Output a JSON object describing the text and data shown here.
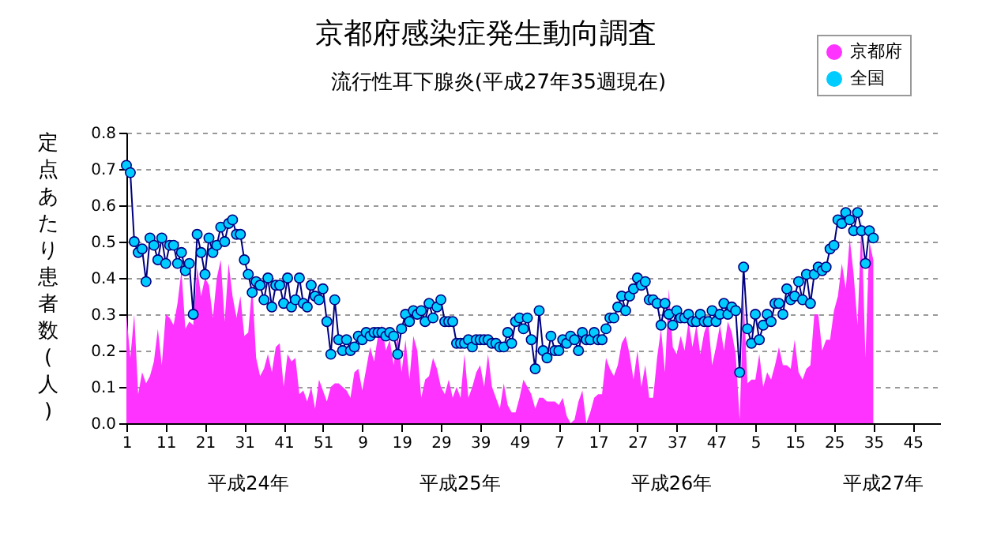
{
  "chart_data": {
    "type": "area",
    "title": "京都府感染症発生動向調査",
    "subtitle": "流行性耳下腺炎(平成27年35週現在)",
    "ylabel": "定点あたり患者数(人)",
    "categories": [
      "1",
      null,
      null,
      null,
      null,
      null,
      null,
      null,
      null,
      null,
      "11",
      null,
      null,
      null,
      null,
      null,
      null,
      null,
      null,
      null,
      "21",
      null,
      null,
      null,
      null,
      null,
      null,
      null,
      null,
      null,
      "31",
      null,
      null,
      null,
      null,
      null,
      null,
      null,
      null,
      null,
      "41",
      null,
      null,
      null,
      null,
      null,
      null,
      null,
      null,
      null,
      "51",
      null,
      null,
      null,
      null,
      null,
      null,
      null,
      null,
      null,
      "9",
      null,
      null,
      null,
      null,
      null,
      null,
      null,
      null,
      null,
      "19",
      null,
      null,
      null,
      null,
      null,
      null,
      null,
      null,
      null,
      "29",
      null,
      null,
      null,
      null,
      null,
      null,
      null,
      null,
      null,
      "39",
      null,
      null,
      null,
      null,
      null,
      null,
      null,
      null,
      null,
      "49",
      null,
      null,
      null,
      null,
      null,
      null,
      null,
      null,
      null,
      "7",
      null,
      null,
      null,
      null,
      null,
      null,
      null,
      null,
      null,
      "17",
      null,
      null,
      null,
      null,
      null,
      null,
      null,
      null,
      null,
      "27",
      null,
      null,
      null,
      null,
      null,
      null,
      null,
      null,
      null,
      "37",
      null,
      null,
      null,
      null,
      null,
      null,
      null,
      null,
      null,
      "47",
      null,
      null,
      null,
      null,
      null,
      null,
      null,
      null,
      null,
      "5",
      null,
      null,
      null,
      null,
      null,
      null,
      null,
      null,
      null,
      "15",
      null,
      null,
      null,
      null,
      null,
      null,
      null,
      null,
      null,
      "25",
      null,
      null,
      null,
      null,
      null,
      null,
      null,
      null,
      null,
      "35",
      null,
      null,
      null,
      null,
      null,
      null,
      null,
      null,
      null,
      "45",
      null,
      null,
      null,
      null,
      null,
      null,
      null
    ],
    "series": [
      {
        "name": "京都府",
        "color": "#ff33ff",
        "values": [
          0.3,
          0.18,
          0.3,
          0.08,
          0.14,
          0.11,
          0.13,
          0.17,
          0.26,
          0.16,
          0.3,
          0.29,
          0.27,
          0.33,
          0.42,
          0.26,
          0.28,
          0.27,
          0.43,
          0.35,
          0.4,
          0.38,
          0.29,
          0.4,
          0.45,
          0.28,
          0.44,
          0.35,
          0.29,
          0.35,
          0.24,
          0.25,
          0.38,
          0.18,
          0.13,
          0.15,
          0.19,
          0.14,
          0.21,
          0.22,
          0.1,
          0.19,
          0.17,
          0.18,
          0.08,
          0.09,
          0.06,
          0.1,
          0.04,
          0.12,
          0.09,
          0.06,
          0.1,
          0.11,
          0.11,
          0.1,
          0.09,
          0.07,
          0.14,
          0.15,
          0.09,
          0.15,
          0.21,
          0.17,
          0.24,
          0.27,
          0.2,
          0.23,
          0.16,
          0.25,
          0.14,
          0.23,
          0.12,
          0.24,
          0.2,
          0.07,
          0.12,
          0.13,
          0.18,
          0.15,
          0.1,
          0.08,
          0.12,
          0.07,
          0.1,
          0.07,
          0.19,
          0.07,
          0.1,
          0.14,
          0.16,
          0.1,
          0.19,
          0.1,
          0.07,
          0.04,
          0.11,
          0.05,
          0.03,
          0.03,
          0.07,
          0.12,
          0.1,
          0.08,
          0.04,
          0.07,
          0.07,
          0.06,
          0.06,
          0.06,
          0.05,
          0.07,
          0.02,
          0.0,
          0.01,
          0.06,
          0.09,
          0.0,
          0.03,
          0.07,
          0.08,
          0.08,
          0.18,
          0.15,
          0.13,
          0.16,
          0.22,
          0.24,
          0.19,
          0.12,
          0.2,
          0.1,
          0.16,
          0.07,
          0.07,
          0.18,
          0.26,
          0.14,
          0.37,
          0.21,
          0.19,
          0.24,
          0.2,
          0.28,
          0.21,
          0.27,
          0.19,
          0.25,
          0.28,
          0.16,
          0.21,
          0.27,
          0.2,
          0.28,
          0.25,
          0.19,
          0.01,
          0.35,
          0.11,
          0.12,
          0.12,
          0.19,
          0.1,
          0.14,
          0.12,
          0.16,
          0.21,
          0.16,
          0.16,
          0.15,
          0.23,
          0.14,
          0.12,
          0.15,
          0.16,
          0.3,
          0.3,
          0.2,
          0.23,
          0.23,
          0.31,
          0.35,
          0.44,
          0.37,
          0.51,
          0.41,
          0.27,
          0.56,
          0.18,
          0.5,
          0.45,
          null,
          null,
          null,
          null,
          null,
          null,
          null,
          null,
          null,
          null,
          null,
          null,
          null,
          null,
          null,
          null,
          null
        ]
      },
      {
        "name": "全国",
        "type": "line",
        "color": "#00ccff",
        "marker": "circle",
        "values": [
          0.71,
          0.69,
          0.5,
          0.47,
          0.48,
          0.39,
          0.51,
          0.49,
          0.45,
          0.51,
          0.44,
          0.49,
          0.49,
          0.44,
          0.47,
          0.42,
          0.44,
          0.3,
          0.52,
          0.47,
          0.41,
          0.51,
          0.47,
          0.49,
          0.54,
          0.5,
          0.55,
          0.56,
          0.52,
          0.52,
          0.45,
          0.41,
          0.36,
          0.39,
          0.38,
          0.34,
          0.4,
          0.32,
          0.38,
          0.38,
          0.33,
          0.4,
          0.32,
          0.34,
          0.4,
          0.33,
          0.32,
          0.38,
          0.35,
          0.34,
          0.37,
          0.28,
          0.19,
          0.34,
          0.23,
          0.2,
          0.23,
          0.2,
          0.21,
          0.24,
          0.23,
          0.25,
          0.24,
          0.25,
          0.25,
          0.25,
          0.24,
          0.25,
          0.24,
          0.19,
          0.26,
          0.3,
          0.28,
          0.31,
          0.3,
          0.31,
          0.28,
          0.33,
          0.29,
          0.32,
          0.34,
          0.28,
          0.28,
          0.28,
          0.22,
          0.22,
          0.22,
          0.23,
          0.21,
          0.23,
          0.23,
          0.23,
          0.23,
          0.22,
          0.22,
          0.21,
          0.21,
          0.25,
          0.22,
          0.28,
          0.29,
          0.26,
          0.29,
          0.23,
          0.15,
          0.31,
          0.2,
          0.18,
          0.24,
          0.2,
          0.2,
          0.23,
          0.22,
          0.24,
          0.23,
          0.2,
          0.25,
          0.23,
          0.23,
          0.25,
          0.23,
          0.23,
          0.26,
          0.29,
          0.29,
          0.32,
          0.35,
          0.31,
          0.35,
          0.37,
          0.4,
          0.38,
          0.39,
          0.34,
          0.34,
          0.33,
          0.27,
          0.33,
          0.3,
          0.27,
          0.31,
          0.29,
          0.29,
          0.3,
          0.28,
          0.28,
          0.3,
          0.28,
          0.28,
          0.31,
          0.28,
          0.3,
          0.33,
          0.3,
          0.32,
          0.31,
          0.14,
          0.43,
          0.26,
          0.22,
          0.3,
          0.23,
          0.27,
          0.3,
          0.28,
          0.33,
          0.33,
          0.3,
          0.37,
          0.34,
          0.35,
          0.39,
          0.34,
          0.41,
          0.33,
          0.41,
          0.43,
          0.42,
          0.43,
          0.48,
          0.49,
          0.56,
          0.55,
          0.58,
          0.56,
          0.53,
          0.58,
          0.53,
          0.44,
          0.53,
          0.51,
          null,
          null,
          null,
          null,
          null,
          null,
          null,
          null,
          null,
          null,
          null,
          null,
          null,
          null,
          null,
          null,
          null
        ]
      }
    ],
    "ylim": [
      0,
      0.8
    ],
    "yticks": [
      {
        "value": 0,
        "label": "0.0"
      },
      0.1,
      0.2,
      0.3,
      0.4,
      0.5,
      0.6,
      0.7,
      0.8
    ],
    "annotations": [
      "平成24年",
      "平成25年",
      "平成26年",
      "平成27年"
    ],
    "grid": "y",
    "legend": "top right"
  }
}
